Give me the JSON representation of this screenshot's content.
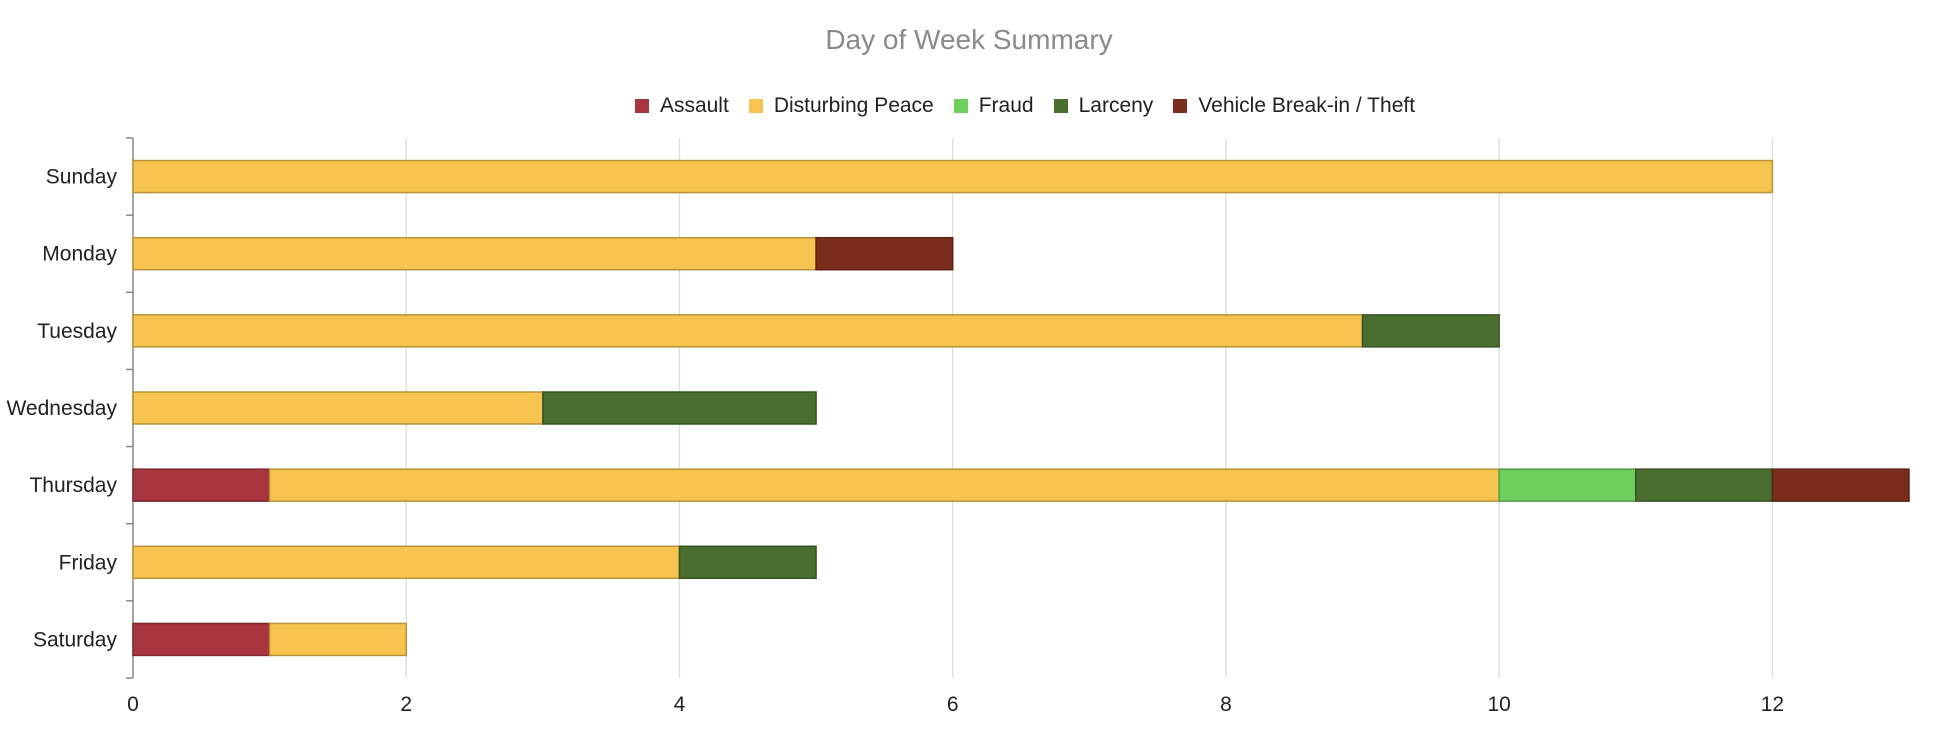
{
  "chart_data": {
    "type": "bar",
    "orientation": "horizontal",
    "stacked": true,
    "title": "Day of Week Summary",
    "xlabel": "",
    "ylabel": "",
    "xlim": [
      0,
      13
    ],
    "xticks": [
      0,
      2,
      4,
      6,
      8,
      10,
      12
    ],
    "grid": true,
    "legend_position": "top-center",
    "categories": [
      "Sunday",
      "Monday",
      "Tuesday",
      "Wednesday",
      "Thursday",
      "Friday",
      "Saturday"
    ],
    "series": [
      {
        "name": "Assault",
        "color": "#a8353f",
        "values": [
          0,
          0,
          0,
          0,
          1,
          0,
          1
        ]
      },
      {
        "name": "Disturbing Peace",
        "color": "#f6c44f",
        "values": [
          12,
          5,
          9,
          3,
          9,
          4,
          1
        ]
      },
      {
        "name": "Fraud",
        "color": "#6fcf5d",
        "values": [
          0,
          0,
          0,
          0,
          1,
          0,
          0
        ]
      },
      {
        "name": "Larceny",
        "color": "#4a6e2f",
        "values": [
          0,
          0,
          1,
          2,
          1,
          1,
          0
        ]
      },
      {
        "name": "Vehicle Break-in / Theft",
        "color": "#7a2d1c",
        "values": [
          0,
          1,
          0,
          0,
          1,
          0,
          0
        ]
      }
    ]
  }
}
